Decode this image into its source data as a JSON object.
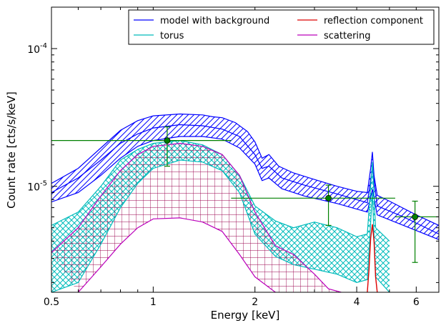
{
  "chart_data": {
    "type": "line",
    "xlabel": "Energy [keV]",
    "ylabel": "Count rate [cts/s/keV]",
    "xscale": "log",
    "yscale": "log",
    "xlim": [
      0.5,
      7.0
    ],
    "ylim": [
      1.7e-06,
      0.0002
    ],
    "x_ticks": [
      {
        "value": 0.5,
        "label": "0.5"
      },
      {
        "value": 1,
        "label": "1"
      },
      {
        "value": 2,
        "label": "2"
      },
      {
        "value": 4,
        "label": "4"
      },
      {
        "value": 6,
        "label": "6"
      }
    ],
    "y_ticks": [
      {
        "value": 1e-05,
        "base": "10",
        "exp": "-5"
      },
      {
        "value": 0.0001,
        "base": "10",
        "exp": "-4"
      }
    ],
    "legend": {
      "position": "top-right",
      "entries": [
        {
          "label": "model with background",
          "color": "#0000ff"
        },
        {
          "label": "reflection component",
          "color": "#dd0000"
        },
        {
          "label": "torus",
          "color": "#00bbbb"
        },
        {
          "label": "scattering",
          "color": "#bb00bb"
        }
      ]
    },
    "series": [
      {
        "name": "model with background",
        "color": "#0000ff",
        "hatch": "diagonal",
        "upper": [
          [
            0.5,
            1.05e-05
          ],
          [
            0.6,
            1.35e-05
          ],
          [
            0.7,
            1.9e-05
          ],
          [
            0.8,
            2.55e-05
          ],
          [
            0.9,
            3e-05
          ],
          [
            1.0,
            3.25e-05
          ],
          [
            1.2,
            3.35e-05
          ],
          [
            1.4,
            3.3e-05
          ],
          [
            1.5,
            3.2e-05
          ],
          [
            1.6,
            3.15e-05
          ],
          [
            1.75,
            2.9e-05
          ],
          [
            1.9,
            2.5e-05
          ],
          [
            2.0,
            2.1e-05
          ],
          [
            2.1,
            1.6e-05
          ],
          [
            2.2,
            1.7e-05
          ],
          [
            2.35,
            1.4e-05
          ],
          [
            2.6,
            1.25e-05
          ],
          [
            3.0,
            1.12e-05
          ],
          [
            3.5,
            1e-05
          ],
          [
            4.0,
            9.2e-06
          ],
          [
            4.3,
            9e-06
          ],
          [
            4.4,
            1.35e-05
          ],
          [
            4.45,
            1.78e-05
          ],
          [
            4.5,
            1.2e-05
          ],
          [
            4.6,
            8.6e-06
          ],
          [
            5.0,
            7.8e-06
          ],
          [
            6.0,
            6.2e-06
          ],
          [
            7.0,
            5.2e-06
          ]
        ],
        "mid": [
          [
            0.5,
            9e-06
          ],
          [
            0.6,
            1.15e-05
          ],
          [
            0.7,
            1.55e-05
          ],
          [
            0.8,
            2.05e-05
          ],
          [
            0.9,
            2.4e-05
          ],
          [
            1.0,
            2.65e-05
          ],
          [
            1.2,
            2.8e-05
          ],
          [
            1.4,
            2.75e-05
          ],
          [
            1.6,
            2.6e-05
          ],
          [
            1.8,
            2.3e-05
          ],
          [
            2.0,
            1.7e-05
          ],
          [
            2.1,
            1.35e-05
          ],
          [
            2.2,
            1.4e-05
          ],
          [
            2.4,
            1.15e-05
          ],
          [
            2.8,
            1.02e-05
          ],
          [
            3.5,
            8.8e-06
          ],
          [
            4.3,
            7.6e-06
          ],
          [
            4.45,
            1.35e-05
          ],
          [
            4.6,
            7.2e-06
          ],
          [
            5.5,
            6e-06
          ],
          [
            7.0,
            4.5e-06
          ]
        ],
        "lower": [
          [
            0.5,
            7.7e-06
          ],
          [
            0.6,
            9e-06
          ],
          [
            0.7,
            1.2e-05
          ],
          [
            0.8,
            1.6e-05
          ],
          [
            0.9,
            1.95e-05
          ],
          [
            1.0,
            2.15e-05
          ],
          [
            1.2,
            2.3e-05
          ],
          [
            1.4,
            2.3e-05
          ],
          [
            1.6,
            2.2e-05
          ],
          [
            1.8,
            1.9e-05
          ],
          [
            2.0,
            1.45e-05
          ],
          [
            2.1,
            1.1e-05
          ],
          [
            2.2,
            1.15e-05
          ],
          [
            2.4,
            9.6e-06
          ],
          [
            2.8,
            8.5e-06
          ],
          [
            3.5,
            7.5e-06
          ],
          [
            4.3,
            6.5e-06
          ],
          [
            4.45,
            9.5e-06
          ],
          [
            4.6,
            6.2e-06
          ],
          [
            5.5,
            5.2e-06
          ],
          [
            7.0,
            4.1e-06
          ]
        ]
      },
      {
        "name": "torus",
        "color": "#00bbbb",
        "hatch": "crosshatch",
        "upper": [
          [
            0.5,
            5.2e-06
          ],
          [
            0.6,
            6.5e-06
          ],
          [
            0.7,
            1e-05
          ],
          [
            0.8,
            1.55e-05
          ],
          [
            0.9,
            1.85e-05
          ],
          [
            1.0,
            2.05e-05
          ],
          [
            1.2,
            2.15e-05
          ],
          [
            1.4,
            2e-05
          ],
          [
            1.6,
            1.7e-05
          ],
          [
            1.8,
            1.2e-05
          ],
          [
            2.0,
            7.2e-06
          ],
          [
            2.3,
            5.6e-06
          ],
          [
            2.6,
            5e-06
          ],
          [
            3.0,
            5.5e-06
          ],
          [
            3.5,
            5e-06
          ],
          [
            4.0,
            4.3e-06
          ],
          [
            4.3,
            4.5e-06
          ],
          [
            4.45,
            1.5e-05
          ],
          [
            4.55,
            5e-06
          ],
          [
            5.0,
            4e-06
          ]
        ],
        "lower": [
          [
            0.5,
            1.7e-06
          ],
          [
            0.6,
            2e-06
          ],
          [
            0.7,
            3.8e-06
          ],
          [
            0.8,
            7e-06
          ],
          [
            0.9,
            1.05e-05
          ],
          [
            1.0,
            1.35e-05
          ],
          [
            1.2,
            1.55e-05
          ],
          [
            1.4,
            1.5e-05
          ],
          [
            1.6,
            1.3e-05
          ],
          [
            1.8,
            9e-06
          ],
          [
            2.0,
            4.5e-06
          ],
          [
            2.3,
            3.1e-06
          ],
          [
            2.6,
            2.7e-06
          ],
          [
            3.0,
            2.5e-06
          ],
          [
            3.5,
            2.3e-06
          ],
          [
            4.0,
            2e-06
          ],
          [
            4.3,
            2.1e-06
          ],
          [
            4.45,
            9e-06
          ],
          [
            4.55,
            2.2e-06
          ],
          [
            5.0,
            1.7e-06
          ]
        ]
      },
      {
        "name": "scattering",
        "color": "#bb00bb",
        "hatch": "grid",
        "upper": [
          [
            0.5,
            3.3e-06
          ],
          [
            0.6,
            5e-06
          ],
          [
            0.7,
            8.5e-06
          ],
          [
            0.8,
            1.3e-05
          ],
          [
            0.9,
            1.7e-05
          ],
          [
            1.0,
            1.95e-05
          ],
          [
            1.2,
            2.05e-05
          ],
          [
            1.4,
            1.95e-05
          ],
          [
            1.6,
            1.7e-05
          ],
          [
            1.8,
            1.2e-05
          ],
          [
            2.0,
            6.5e-06
          ],
          [
            2.3,
            3.7e-06
          ],
          [
            2.6,
            3.2e-06
          ],
          [
            3.0,
            2.3e-06
          ],
          [
            3.3,
            1.8e-06
          ],
          [
            3.6,
            1.7e-06
          ]
        ],
        "lower": [
          [
            0.6,
            1.7e-06
          ],
          [
            0.7,
            2.6e-06
          ],
          [
            0.8,
            3.8e-06
          ],
          [
            0.9,
            5e-06
          ],
          [
            1.0,
            5.8e-06
          ],
          [
            1.2,
            5.9e-06
          ],
          [
            1.4,
            5.5e-06
          ],
          [
            1.6,
            4.7e-06
          ],
          [
            1.8,
            3.2e-06
          ],
          [
            2.0,
            2.2e-06
          ],
          [
            2.3,
            1.7e-06
          ]
        ]
      },
      {
        "name": "reflection component",
        "color": "#dd0000",
        "line": [
          [
            4.3,
            1.7e-06
          ],
          [
            4.35,
            2.5e-06
          ],
          [
            4.4,
            4.2e-06
          ],
          [
            4.45,
            5.3e-06
          ],
          [
            4.5,
            4e-06
          ],
          [
            4.55,
            2.2e-06
          ],
          [
            4.6,
            1.7e-06
          ]
        ]
      }
    ],
    "data_points": {
      "color": "#008000",
      "points": [
        {
          "x": 1.1,
          "y": 2.15e-05,
          "x_err": [
            0.5,
            1.7
          ],
          "y_err": [
            1.4e-05,
            2.7e-05
          ]
        },
        {
          "x": 3.3,
          "y": 8.2e-06,
          "x_err": [
            1.7,
            5.2
          ],
          "y_err": [
            5.2e-06,
            1.02e-05
          ]
        },
        {
          "x": 5.95,
          "y": 6e-06,
          "x_err": [
            5.2,
            7.0
          ],
          "y_err": [
            2.8e-06,
            7.8e-06
          ]
        }
      ]
    }
  }
}
